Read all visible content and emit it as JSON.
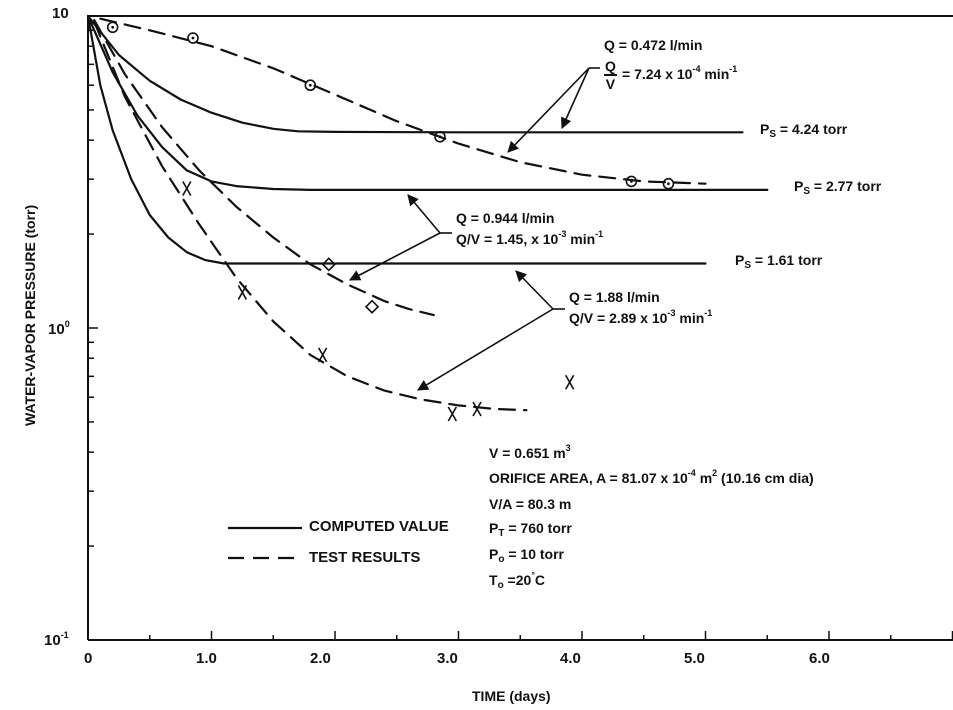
{
  "chart_data": {
    "type": "line",
    "xlabel": "TIME (days)",
    "ylabel": "WATER-VAPOR PRESSURE (torr)",
    "scale_y": "log",
    "xlim": [
      0,
      7
    ],
    "ylim": [
      0.1,
      10
    ],
    "x_ticks": [
      "0",
      "1.0",
      "2.0",
      "3.0",
      "4.0",
      "5.0",
      "6.0"
    ],
    "y_ticks": [
      {
        "base": "10",
        "exp": ""
      },
      {
        "base": "10",
        "exp": "0"
      },
      {
        "base": "10",
        "exp": "-1"
      }
    ],
    "series": [
      {
        "style": "solid",
        "x": [
          0,
          0.25,
          0.5,
          0.75,
          1.0,
          1.25,
          1.5,
          1.7,
          2.0,
          3.0,
          4.0,
          5.0,
          5.3
        ],
        "y": [
          10,
          7.5,
          6.2,
          5.4,
          4.9,
          4.55,
          4.35,
          4.27,
          4.25,
          4.24,
          4.24,
          4.24,
          4.24
        ]
      },
      {
        "style": "solid",
        "x": [
          0,
          0.2,
          0.4,
          0.6,
          0.8,
          1.0,
          1.2,
          1.5,
          1.8,
          2.0,
          3.0,
          4.0,
          5.0,
          5.5
        ],
        "y": [
          10,
          6.6,
          4.8,
          3.8,
          3.2,
          2.95,
          2.85,
          2.79,
          2.77,
          2.77,
          2.77,
          2.77,
          2.77,
          2.77
        ]
      },
      {
        "style": "solid",
        "x": [
          0,
          0.1,
          0.2,
          0.35,
          0.5,
          0.65,
          0.8,
          0.95,
          1.1,
          1.5,
          2.0,
          3.0,
          4.0,
          5.0
        ],
        "y": [
          10,
          6.0,
          4.3,
          3.0,
          2.3,
          1.95,
          1.75,
          1.65,
          1.61,
          1.61,
          1.61,
          1.61,
          1.61,
          1.61
        ]
      },
      {
        "style": "dashed",
        "x": [
          0.1,
          0.5,
          1.0,
          1.5,
          2.0,
          2.5,
          3.0,
          3.5,
          4.0,
          4.5,
          5.0
        ],
        "y": [
          9.8,
          9.0,
          8.0,
          6.8,
          5.6,
          4.6,
          3.9,
          3.4,
          3.1,
          2.95,
          2.9
        ]
      },
      {
        "style": "dashed",
        "x": [
          0.05,
          0.3,
          0.6,
          0.9,
          1.2,
          1.5,
          1.8,
          2.1,
          2.4,
          2.6,
          2.8
        ],
        "y": [
          9.7,
          6.5,
          4.4,
          3.2,
          2.45,
          1.95,
          1.6,
          1.38,
          1.22,
          1.15,
          1.1
        ]
      },
      {
        "style": "dashed",
        "x": [
          0.05,
          0.3,
          0.6,
          0.9,
          1.2,
          1.5,
          1.8,
          2.1,
          2.4,
          2.7,
          3.0,
          3.3,
          3.55
        ],
        "y": [
          9.6,
          5.5,
          3.3,
          2.15,
          1.45,
          1.05,
          0.82,
          0.7,
          0.63,
          0.59,
          0.565,
          0.55,
          0.545
        ]
      }
    ],
    "points": {
      "circle": [
        [
          0.2,
          9.2
        ],
        [
          0.85,
          8.5
        ],
        [
          1.8,
          6.0
        ],
        [
          2.85,
          4.1
        ],
        [
          4.4,
          2.95
        ],
        [
          4.7,
          2.9
        ]
      ],
      "diamond": [
        [
          1.95,
          1.6
        ],
        [
          2.3,
          1.17
        ]
      ],
      "x_mark": [
        [
          0.8,
          2.8
        ],
        [
          1.25,
          1.3
        ],
        [
          1.9,
          0.82
        ],
        [
          2.95,
          0.53
        ],
        [
          3.15,
          0.55
        ],
        [
          3.9,
          0.67
        ]
      ]
    },
    "labels": {
      "ps1": {
        "prefix": "P",
        "sub": "S",
        "text": " = 4.24 torr"
      },
      "ps2": {
        "prefix": "P",
        "sub": "S",
        "text": " = 2.77 torr"
      },
      "ps3": {
        "prefix": "P",
        "sub": "S",
        "text": " = 1.61 torr"
      },
      "q1": {
        "line1": "Q = 0.472 l/min",
        "frac_num": "Q",
        "frac_den": "V",
        "line2_post": " = 7.24 x 10",
        "line2_exp": "-4",
        "line2_unit": " min",
        "line2_unit_exp": "-1"
      },
      "q2": {
        "line1": "Q = 0.944 l/min",
        "line2_pre": "Q/V = 1.45, x 10",
        "line2_exp": "-3",
        "line2_unit": " min",
        "line2_unit_exp": "-1"
      },
      "q3": {
        "line1": "Q = 1.88 l/min",
        "line2_pre": "Q/V = 2.89 x 10",
        "line2_exp": "-3",
        "line2_unit": " min",
        "line2_unit_exp": "-1"
      }
    },
    "params": {
      "v": {
        "text": "V = 0.651 m",
        "exp": "3"
      },
      "orifice": {
        "pre": "ORIFICE AREA, A = 81.07 x 10",
        "exp": "-4",
        "mid": " m",
        "exp2": "2",
        "post": " (10.16 cm dia)"
      },
      "va": "V/A = 80.3 m",
      "pt": {
        "p": "P",
        "sub": "T",
        "post": " = 760 torr"
      },
      "po": {
        "p": "P",
        "sub": "o",
        "post": " = 10 torr"
      },
      "to": {
        "p": "T",
        "sub": "o",
        "post": " =20",
        "deg": "°",
        "unit": "C"
      }
    },
    "legend": [
      {
        "style": "solid",
        "label": "COMPUTED VALUE"
      },
      {
        "style": "dashed",
        "label": "TEST RESULTS"
      }
    ]
  }
}
